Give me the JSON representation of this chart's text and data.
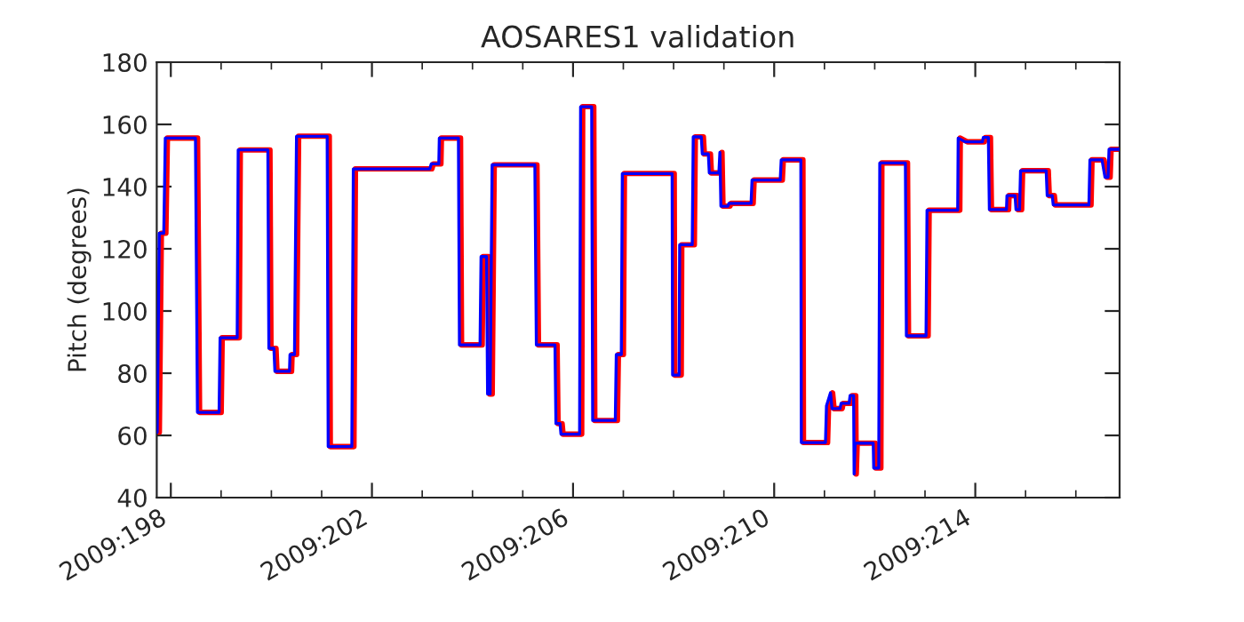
{
  "chart_data": {
    "type": "line",
    "title": "AOSARES1 validation",
    "ylabel": "Pitch (degrees)",
    "xlim": [
      "2009-07-16T17:17",
      "2009-08-04T20:53"
    ],
    "ylim": [
      40,
      180
    ],
    "yticks": [
      40,
      60,
      80,
      100,
      120,
      140,
      160,
      180
    ],
    "xticks": [
      {
        "value": "2009-07-17",
        "label": "2009:198"
      },
      {
        "value": "2009-07-18",
        "label": null
      },
      {
        "value": "2009-07-19",
        "label": null
      },
      {
        "value": "2009-07-20",
        "label": null
      },
      {
        "value": "2009-07-21",
        "label": "2009:202"
      },
      {
        "value": "2009-07-22",
        "label": null
      },
      {
        "value": "2009-07-23",
        "label": null
      },
      {
        "value": "2009-07-24",
        "label": null
      },
      {
        "value": "2009-07-25",
        "label": "2009:206"
      },
      {
        "value": "2009-07-26",
        "label": null
      },
      {
        "value": "2009-07-27",
        "label": null
      },
      {
        "value": "2009-07-28",
        "label": null
      },
      {
        "value": "2009-07-29",
        "label": "2009:210"
      },
      {
        "value": "2009-07-30",
        "label": null
      },
      {
        "value": "2009-07-31",
        "label": null
      },
      {
        "value": "2009-08-01",
        "label": null
      },
      {
        "value": "2009-08-02",
        "label": "2009:214"
      },
      {
        "value": "2009-08-03",
        "label": null
      },
      {
        "value": "2009-08-04",
        "label": null
      }
    ],
    "grid": false,
    "legend": false,
    "marker": "none",
    "line_style": "solid",
    "series": [
      {
        "color": "#ff0000",
        "x": [
          "2009-07-16T18:31",
          "2009-07-16T19:29",
          "2009-07-16T21:38",
          "2009-07-16T22:22",
          "2009-07-17T12:46",
          "2009-07-17T13:43",
          "2009-07-18T00:02",
          "2009-07-18T00:31",
          "2009-07-18T08:41",
          "2009-07-18T09:10",
          "2009-07-18T23:19",
          "2009-07-18T23:48",
          "2009-07-19T02:12",
          "2009-07-19T02:41",
          "2009-07-19T09:38",
          "2009-07-19T09:53",
          "2009-07-19T12:02",
          "2009-07-19T13:00",
          "2009-07-20T03:38",
          "2009-07-20T04:07",
          "2009-07-20T15:24",
          "2009-07-20T16:07",
          "2009-07-22T04:36",
          "2009-07-22T05:19",
          "2009-07-22T08:55",
          "2009-07-22T09:10",
          "2009-07-22T18:17",
          "2009-07-22T18:46",
          "2009-07-23T04:36",
          "2009-07-23T05:05",
          "2009-07-23T07:43",
          "2009-07-23T08:12",
          "2009-07-23T09:24",
          "2009-07-23T10:22",
          "2009-07-24T06:46",
          "2009-07-24T07:29",
          "2009-07-24T16:22",
          "2009-07-24T16:50",
          "2009-07-24T18:46",
          "2009-07-24T19:14",
          "2009-07-25T04:07",
          "2009-07-25T04:36",
          "2009-07-25T09:53",
          "2009-07-25T10:22",
          "2009-07-25T21:10",
          "2009-07-25T21:38",
          "2009-07-26T00:02",
          "2009-07-26T00:31",
          "2009-07-27T00:17",
          "2009-07-27T00:31",
          "2009-07-27T03:38",
          "2009-07-27T03:53",
          "2009-07-27T09:53",
          "2009-07-27T10:22",
          "2009-07-27T14:12",
          "2009-07-27T14:41",
          "2009-07-27T17:34",
          "2009-07-27T18:02",
          "2009-07-27T22:36",
          "2009-07-27T23:05",
          "2009-07-27T23:34",
          "2009-07-28T02:55",
          "2009-07-28T03:24",
          "2009-07-28T13:58",
          "2009-07-28T14:26",
          "2009-07-29T03:53",
          "2009-07-29T04:22",
          "2009-07-29T13:43",
          "2009-07-29T13:58",
          "2009-07-30T01:29",
          "2009-07-30T01:58",
          "2009-07-30T03:53",
          "2009-07-30T04:36",
          "2009-07-30T08:26",
          "2009-07-30T08:55",
          "2009-07-30T12:46",
          "2009-07-30T13:14",
          "2009-07-30T14:55",
          "2009-07-30T15:10",
          "2009-07-30T15:38",
          "2009-07-31T00:17",
          "2009-07-31T00:31",
          "2009-07-31T02:55",
          "2009-07-31T03:24",
          "2009-07-31T15:38",
          "2009-07-31T16:07",
          "2009-08-01T01:29",
          "2009-08-01T01:58",
          "2009-08-01T16:36",
          "2009-08-01T16:50",
          "2009-08-01T20:12",
          "2009-08-02T04:22",
          "2009-08-02T04:50",
          "2009-08-02T07:14",
          "2009-08-02T07:43",
          "2009-08-02T15:53",
          "2009-08-02T16:07",
          "2009-08-02T19:58",
          "2009-08-02T20:26",
          "2009-08-02T22:07",
          "2009-08-02T22:36",
          "2009-08-03T10:50",
          "2009-08-03T11:19",
          "2009-08-03T13:43",
          "2009-08-03T14:12",
          "2009-08-04T07:14",
          "2009-08-04T07:43",
          "2009-08-04T13:29",
          "2009-08-04T14:55",
          "2009-08-04T16:22",
          "2009-08-04T16:50",
          "2009-08-04T20:53"
        ],
        "values": [
          61,
          125,
          125,
          155.6,
          155.6,
          67.4,
          67.4,
          91.4,
          91.4,
          151.8,
          151.8,
          88,
          88,
          80.6,
          80.6,
          86,
          86,
          156.2,
          156.2,
          56.4,
          56.4,
          145.7,
          145.7,
          147.3,
          147.3,
          155.6,
          155.6,
          89.1,
          89.1,
          117.5,
          117.5,
          73.3,
          73.3,
          147,
          147,
          89.1,
          89.1,
          63.8,
          63.8,
          60.4,
          60.4,
          165.7,
          165.7,
          64.8,
          64.8,
          86,
          86,
          144.2,
          144.2,
          79.4,
          79.4,
          121.3,
          121.3,
          156,
          156,
          150.5,
          150.5,
          144.4,
          144.4,
          151,
          133.7,
          133.7,
          134.6,
          134.6,
          142.1,
          142.1,
          148.6,
          148.6,
          57.7,
          57.7,
          69.5,
          73.7,
          68.6,
          68.6,
          70.3,
          70.3,
          72.8,
          72.8,
          47.6,
          57.5,
          57.5,
          49.5,
          49.5,
          147.6,
          147.6,
          92,
          92,
          132.4,
          132.4,
          155.6,
          154.4,
          154.4,
          155.8,
          155.8,
          132.6,
          132.6,
          137.1,
          137.1,
          132.6,
          132.6,
          145.1,
          145.1,
          137.1,
          137.1,
          134.1,
          134.1,
          148.6,
          148.6,
          143,
          143,
          152,
          152
        ]
      },
      {
        "color": "#0000ff",
        "x": [
          "2009-07-16T17:31",
          "2009-07-16T18:29",
          "2009-07-16T20:38",
          "2009-07-16T21:22",
          "2009-07-17T11:46",
          "2009-07-17T12:43",
          "2009-07-17T23:02",
          "2009-07-17T23:31",
          "2009-07-18T07:41",
          "2009-07-18T08:10",
          "2009-07-18T22:19",
          "2009-07-18T22:48",
          "2009-07-19T01:12",
          "2009-07-19T01:41",
          "2009-07-19T08:38",
          "2009-07-19T08:53",
          "2009-07-19T11:02",
          "2009-07-19T12:00",
          "2009-07-20T02:38",
          "2009-07-20T03:07",
          "2009-07-20T14:24",
          "2009-07-20T15:07",
          "2009-07-22T03:36",
          "2009-07-22T04:19",
          "2009-07-22T07:55",
          "2009-07-22T08:10",
          "2009-07-22T17:17",
          "2009-07-22T17:46",
          "2009-07-23T03:36",
          "2009-07-23T04:05",
          "2009-07-23T06:43",
          "2009-07-23T07:12",
          "2009-07-23T08:24",
          "2009-07-23T09:22",
          "2009-07-24T05:46",
          "2009-07-24T06:29",
          "2009-07-24T15:22",
          "2009-07-24T15:50",
          "2009-07-24T17:46",
          "2009-07-24T18:14",
          "2009-07-25T03:07",
          "2009-07-25T03:36",
          "2009-07-25T08:53",
          "2009-07-25T09:22",
          "2009-07-25T20:10",
          "2009-07-25T20:38",
          "2009-07-25T23:02",
          "2009-07-25T23:31",
          "2009-07-26T23:17",
          "2009-07-26T23:31",
          "2009-07-27T02:38",
          "2009-07-27T02:53",
          "2009-07-27T08:53",
          "2009-07-27T09:22",
          "2009-07-27T13:12",
          "2009-07-27T13:41",
          "2009-07-27T16:34",
          "2009-07-27T17:02",
          "2009-07-27T21:36",
          "2009-07-27T22:05",
          "2009-07-27T22:34",
          "2009-07-28T01:55",
          "2009-07-28T02:24",
          "2009-07-28T12:58",
          "2009-07-28T13:26",
          "2009-07-29T02:53",
          "2009-07-29T03:22",
          "2009-07-29T12:43",
          "2009-07-29T12:58",
          "2009-07-30T00:29",
          "2009-07-30T00:58",
          "2009-07-30T02:53",
          "2009-07-30T03:36",
          "2009-07-30T07:26",
          "2009-07-30T07:55",
          "2009-07-30T11:46",
          "2009-07-30T12:14",
          "2009-07-30T13:55",
          "2009-07-30T14:10",
          "2009-07-30T14:38",
          "2009-07-30T23:17",
          "2009-07-30T23:31",
          "2009-07-31T01:55",
          "2009-07-31T02:24",
          "2009-07-31T14:38",
          "2009-07-31T15:07",
          "2009-08-01T00:29",
          "2009-08-01T00:58",
          "2009-08-01T15:36",
          "2009-08-01T15:50",
          "2009-08-01T19:12",
          "2009-08-02T03:22",
          "2009-08-02T03:50",
          "2009-08-02T06:14",
          "2009-08-02T06:43",
          "2009-08-02T14:53",
          "2009-08-02T15:07",
          "2009-08-02T18:58",
          "2009-08-02T19:26",
          "2009-08-02T21:07",
          "2009-08-02T21:36",
          "2009-08-03T09:50",
          "2009-08-03T10:19",
          "2009-08-03T12:43",
          "2009-08-03T13:12",
          "2009-08-04T06:14",
          "2009-08-04T06:43",
          "2009-08-04T12:29",
          "2009-08-04T13:55",
          "2009-08-04T15:22",
          "2009-08-04T15:50",
          "2009-08-04T20:53"
        ],
        "values": [
          61,
          125,
          125,
          155.6,
          155.6,
          67.4,
          67.4,
          91.4,
          91.4,
          151.8,
          151.8,
          88,
          88,
          80.6,
          80.6,
          86,
          86,
          156.2,
          156.2,
          56.4,
          56.4,
          145.7,
          145.7,
          147.3,
          147.3,
          155.6,
          155.6,
          89.1,
          89.1,
          117.5,
          117.5,
          73.3,
          73.3,
          147,
          147,
          89.1,
          89.1,
          63.8,
          63.8,
          60.4,
          60.4,
          165.7,
          165.7,
          64.8,
          64.8,
          86,
          86,
          144.2,
          144.2,
          79.4,
          79.4,
          121.3,
          121.3,
          156,
          156,
          150.5,
          150.5,
          144.4,
          144.4,
          151,
          133.7,
          133.7,
          134.6,
          134.6,
          142.1,
          142.1,
          148.6,
          148.6,
          57.7,
          57.7,
          69.5,
          73.7,
          68.6,
          68.6,
          70.3,
          70.3,
          72.8,
          72.8,
          47.6,
          57.5,
          57.5,
          49.5,
          49.5,
          147.6,
          147.6,
          92,
          92,
          132.4,
          132.4,
          155.6,
          154.4,
          154.4,
          155.8,
          155.8,
          132.6,
          132.6,
          137.1,
          137.1,
          132.6,
          132.6,
          145.1,
          145.1,
          137.1,
          137.1,
          134.1,
          134.1,
          148.6,
          148.6,
          143,
          143,
          152,
          152
        ]
      }
    ]
  }
}
